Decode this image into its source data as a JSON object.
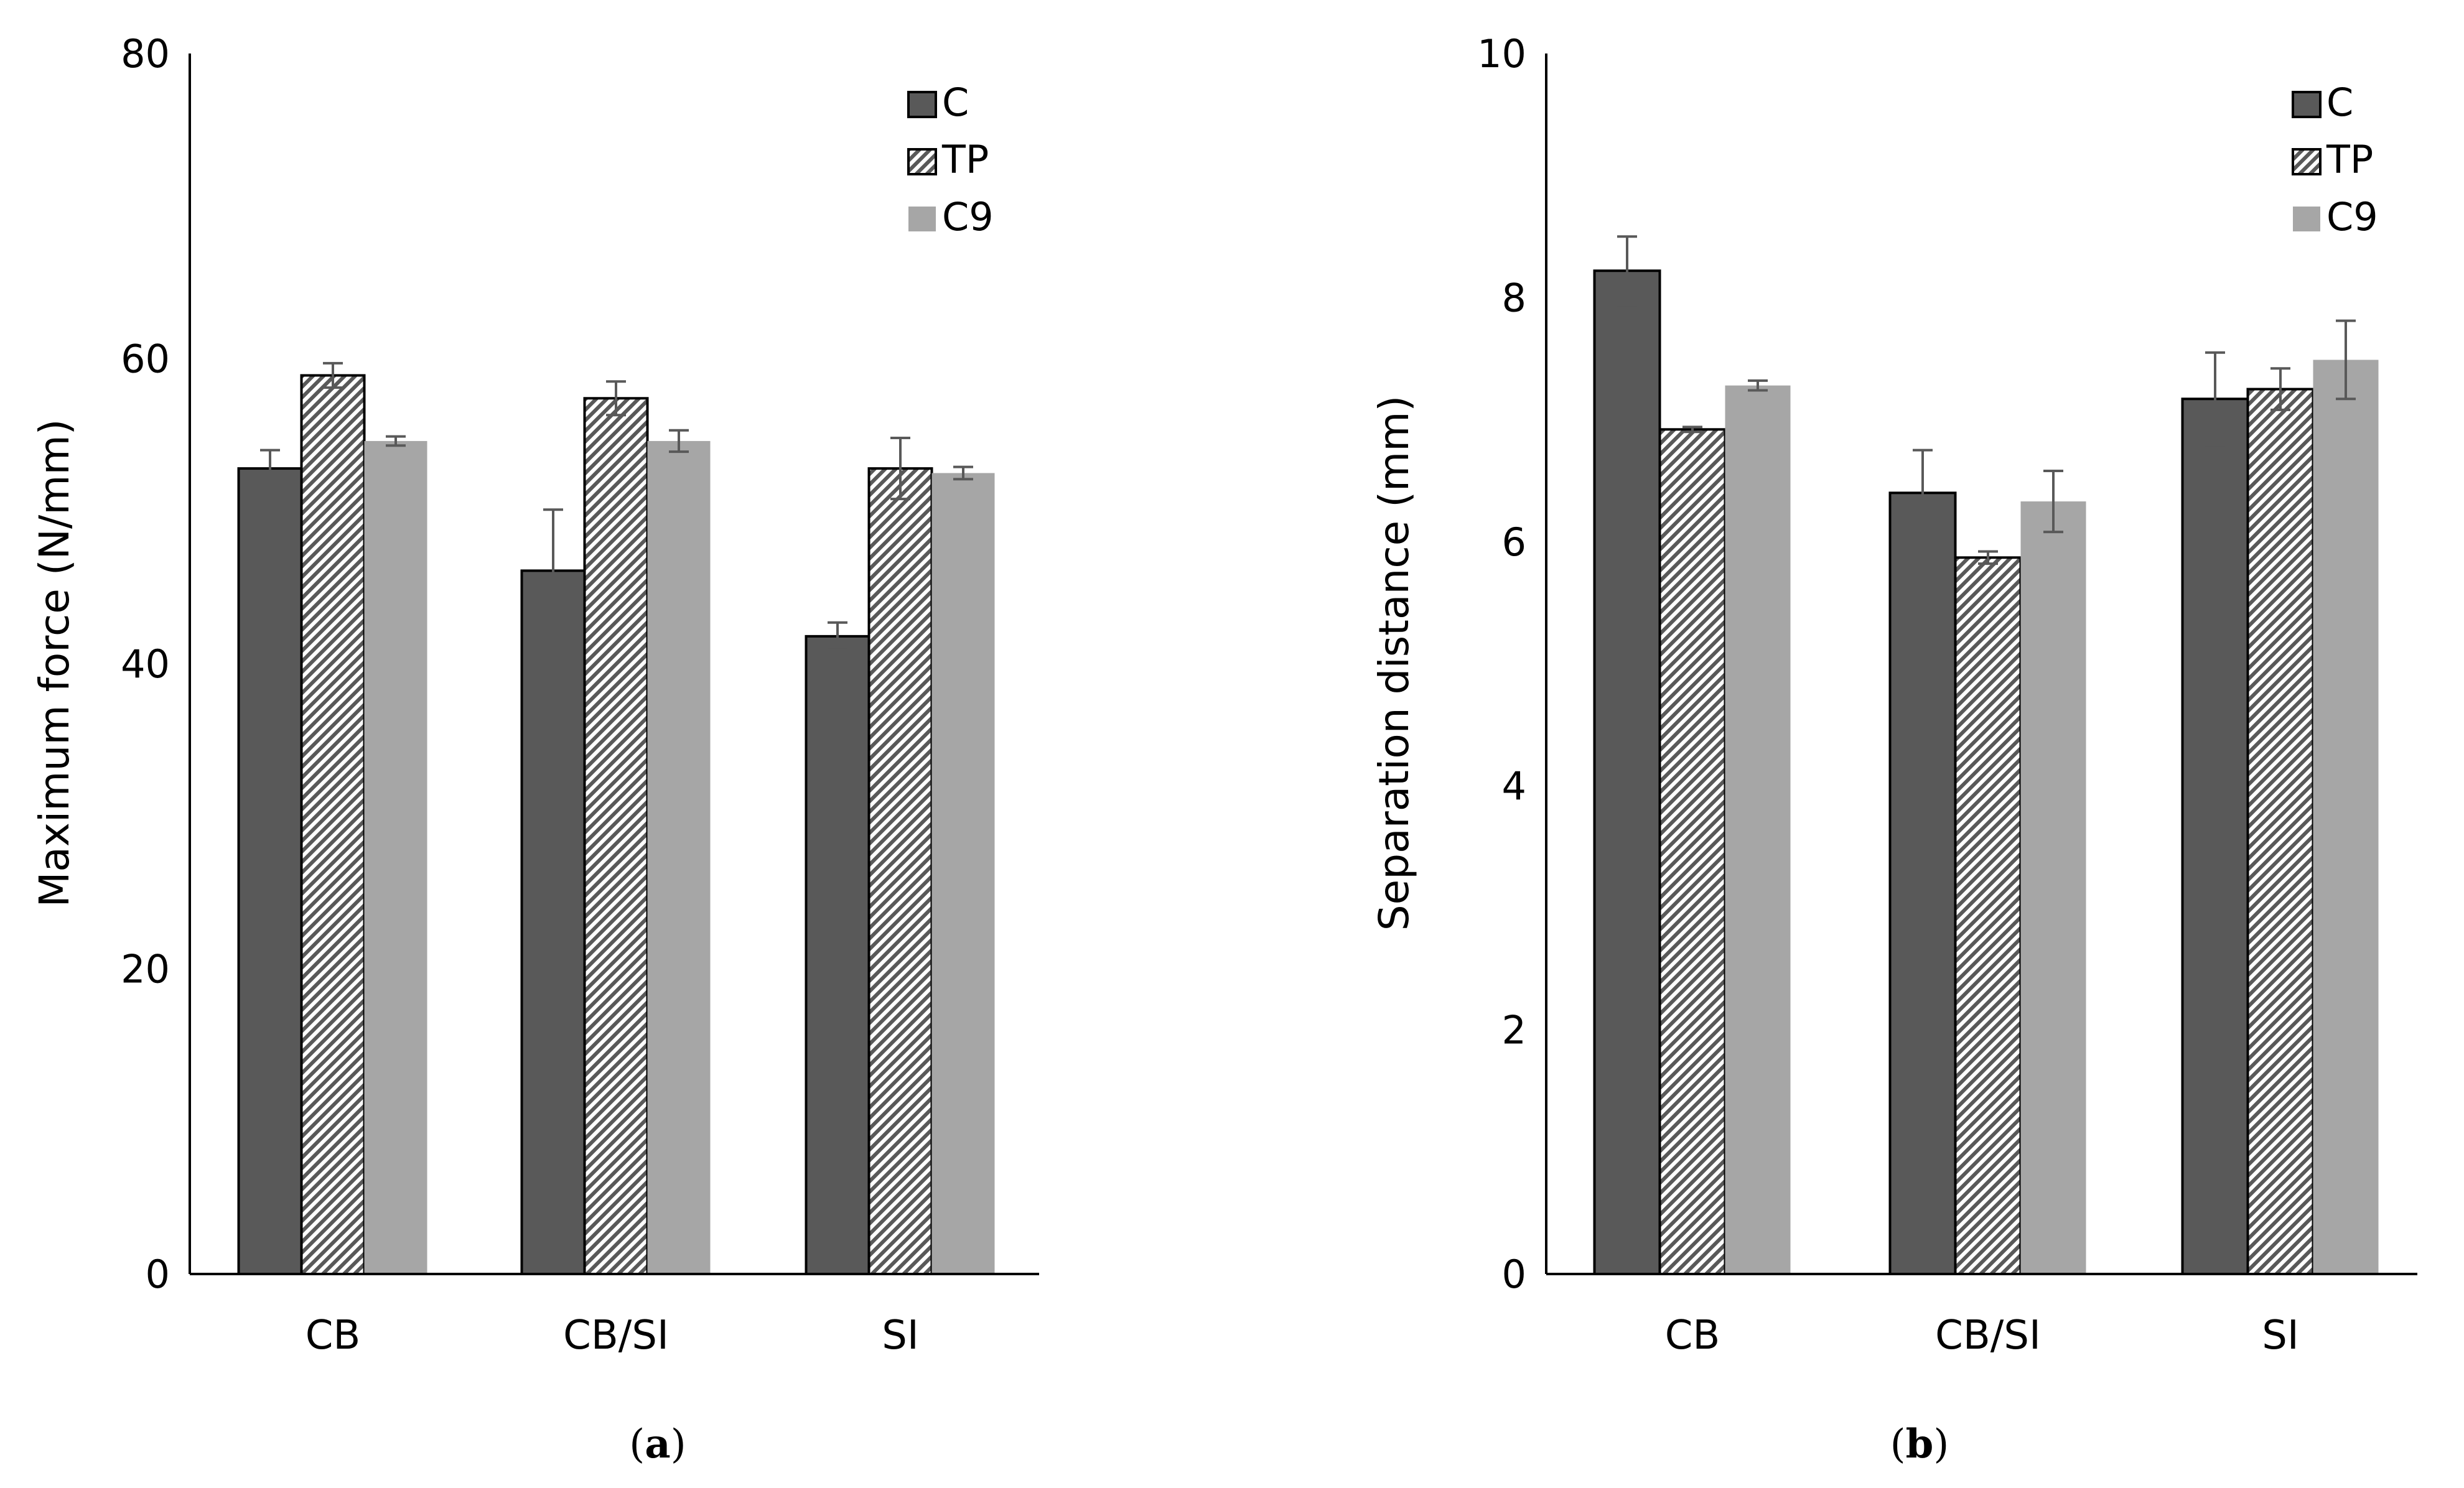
{
  "colors": {
    "C": "#595959",
    "TP": "#ffffff",
    "C9": "#a6a6a6",
    "err": "#595959",
    "hatch": "#595959",
    "axis": "#000000"
  },
  "chart_data": [
    {
      "type": "bar",
      "panel_label": "(a)",
      "panel_letter": "a",
      "title": "",
      "xlabel": "",
      "ylabel": "Maximum force (N/mm)",
      "ylim": [
        0,
        80
      ],
      "yticks": [
        0,
        20,
        40,
        60,
        80
      ],
      "ytick_labels": [
        "0",
        "20",
        "40",
        "60",
        "80"
      ],
      "categories": [
        "CB",
        "CB/SI",
        "SI"
      ],
      "legend": {
        "placement": "top-right",
        "entries": [
          "C",
          "TP",
          "C9"
        ]
      },
      "series": [
        {
          "name": "C",
          "pattern": "solid-dark",
          "values": [
            52.8,
            46.1,
            41.8
          ],
          "errors": [
            1.2,
            4.0,
            0.9
          ]
        },
        {
          "name": "TP",
          "pattern": "hatched",
          "values": [
            58.9,
            57.4,
            52.8
          ],
          "errors": [
            0.8,
            1.1,
            2.0
          ]
        },
        {
          "name": "C9",
          "pattern": "solid-light",
          "values": [
            54.6,
            54.6,
            52.5
          ],
          "errors": [
            0.3,
            0.7,
            0.4
          ]
        }
      ]
    },
    {
      "type": "bar",
      "panel_label": "(b)",
      "panel_letter": "b",
      "title": "",
      "xlabel": "",
      "ylabel": "Separation distance (mm)",
      "ylim": [
        0,
        10
      ],
      "yticks": [
        0,
        2,
        4,
        6,
        8,
        10
      ],
      "ytick_labels": [
        "0",
        "2",
        "4",
        "6",
        "8",
        "10"
      ],
      "categories": [
        "CB",
        "CB/SI",
        "SI"
      ],
      "legend": {
        "placement": "top-right",
        "entries": [
          "C",
          "TP",
          "C9"
        ]
      },
      "series": [
        {
          "name": "C",
          "pattern": "solid-dark",
          "values": [
            8.22,
            6.4,
            7.17
          ],
          "errors": [
            0.28,
            0.35,
            0.38
          ]
        },
        {
          "name": "TP",
          "pattern": "hatched",
          "values": [
            6.92,
            5.87,
            7.25
          ],
          "errors": [
            0.02,
            0.05,
            0.17
          ]
        },
        {
          "name": "C9",
          "pattern": "solid-light",
          "values": [
            7.28,
            6.33,
            7.49
          ],
          "errors": [
            0.04,
            0.25,
            0.32
          ]
        }
      ]
    }
  ]
}
